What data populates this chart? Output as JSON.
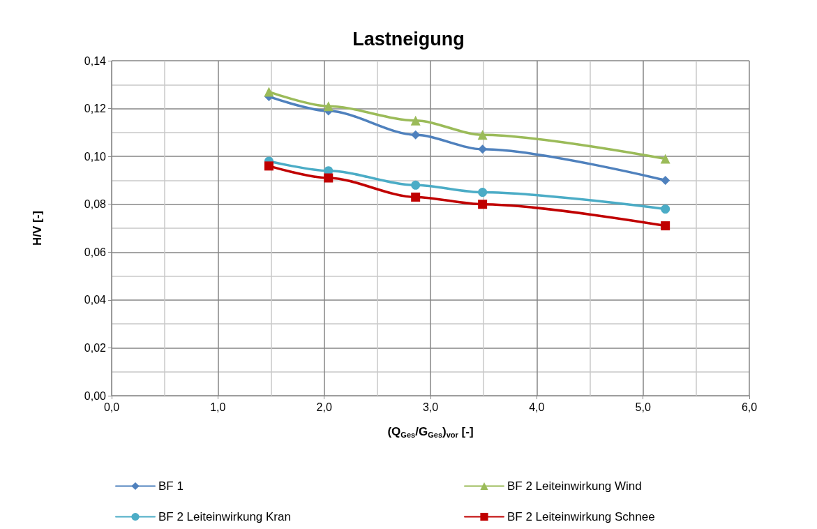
{
  "chart_data": {
    "type": "line",
    "title": "Lastneigung",
    "xlabel": "(Q$_{Ges}$/G$_{Ges}$)$_{vor}$ [-]",
    "ylabel": "H/V [-]",
    "xlim": [
      0,
      6
    ],
    "xticks": [
      {
        "value": 0,
        "label": "0,0"
      },
      {
        "value": 1,
        "label": "1,0"
      },
      {
        "value": 2,
        "label": "2,0"
      },
      {
        "value": 3,
        "label": "3,0"
      },
      {
        "value": 4,
        "label": "4,0"
      },
      {
        "value": 5,
        "label": "5,0"
      },
      {
        "value": 6,
        "label": "6,0"
      }
    ],
    "ylim": [
      0,
      0.14
    ],
    "yticks": [
      {
        "value": 0,
        "label": "0,00"
      },
      {
        "value": 0.02,
        "label": "0,02"
      },
      {
        "value": 0.04,
        "label": "0,04"
      },
      {
        "value": 0.06,
        "label": "0,06"
      },
      {
        "value": 0.08,
        "label": "0,08"
      },
      {
        "value": 0.1,
        "label": "0,10"
      },
      {
        "value": 0.12,
        "label": "0,12"
      },
      {
        "value": 0.14,
        "label": "0,14"
      }
    ],
    "x": [
      1.48,
      2.04,
      2.86,
      3.49,
      5.21
    ],
    "series": [
      {
        "name": "BF 1",
        "color": "#4f81bd",
        "marker": "diamond",
        "values": [
          0.125,
          0.119,
          0.109,
          0.103,
          0.09
        ]
      },
      {
        "name": "BF 2 Leiteinwirkung Wind",
        "color": "#9bbb59",
        "marker": "triangle",
        "values": [
          0.127,
          0.121,
          0.115,
          0.109,
          0.099
        ]
      },
      {
        "name": "BF 2 Leiteinwirkung Kran",
        "color": "#4bacc6",
        "marker": "circle",
        "values": [
          0.098,
          0.094,
          0.088,
          0.085,
          0.078
        ]
      },
      {
        "name": "BF 2 Leiteinwirkung Schnee",
        "color": "#c00000",
        "marker": "square",
        "values": [
          0.096,
          0.091,
          0.083,
          0.08,
          0.071
        ]
      }
    ],
    "grid": true,
    "legend": "bottom",
    "line_style": "solid"
  }
}
